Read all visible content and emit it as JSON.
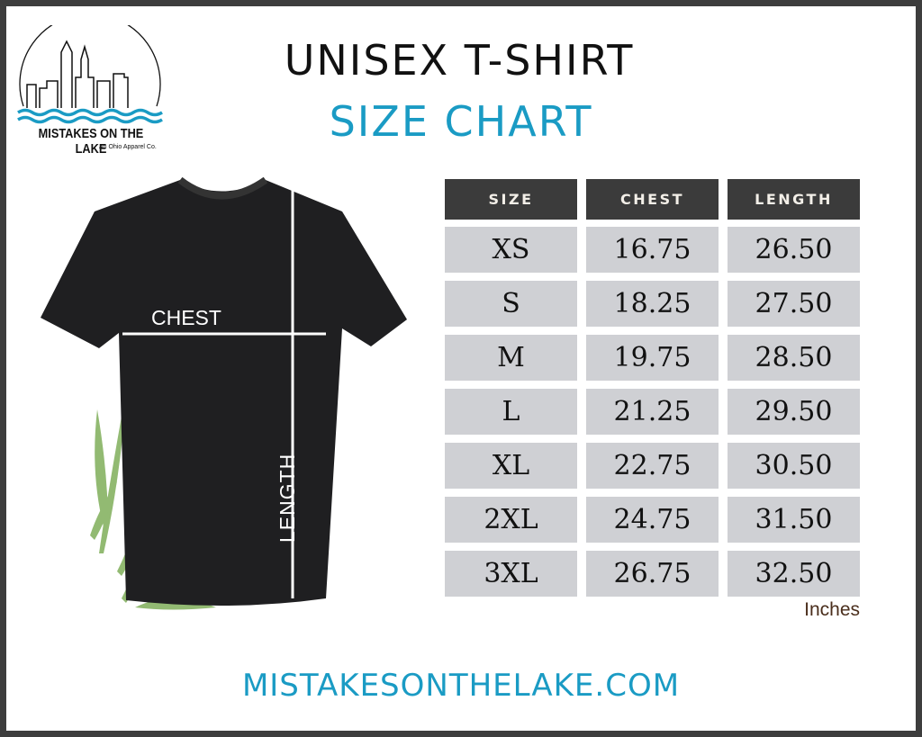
{
  "logo": {
    "name": "MISTAKES ON THE LAKE",
    "tagline": "An Ohio Apparel Co.",
    "colors": {
      "water": "#1a9bc4"
    }
  },
  "title": {
    "line1": "UNISEX T-SHIRT",
    "line2": "SIZE CHART"
  },
  "diagram": {
    "chest_label": "CHEST",
    "length_label": "LENGTH"
  },
  "table": {
    "headers": [
      "SIZE",
      "CHEST",
      "LENGTH"
    ],
    "rows": [
      [
        "XS",
        "16.75",
        "26.50"
      ],
      [
        "S",
        "18.25",
        "27.50"
      ],
      [
        "M",
        "19.75",
        "28.50"
      ],
      [
        "L",
        "21.25",
        "29.50"
      ],
      [
        "XL",
        "22.75",
        "30.50"
      ],
      [
        "2XL",
        "24.75",
        "31.50"
      ],
      [
        "3XL",
        "26.75",
        "32.50"
      ]
    ],
    "unit": "Inches"
  },
  "footer": {
    "website": "MISTAKESONTHELAKE.COM"
  },
  "colors": {
    "accent": "#1a9bc4",
    "header_bg": "#3b3b3b",
    "cell_bg": "#cfd0d4",
    "border": "#3d3d3d"
  }
}
